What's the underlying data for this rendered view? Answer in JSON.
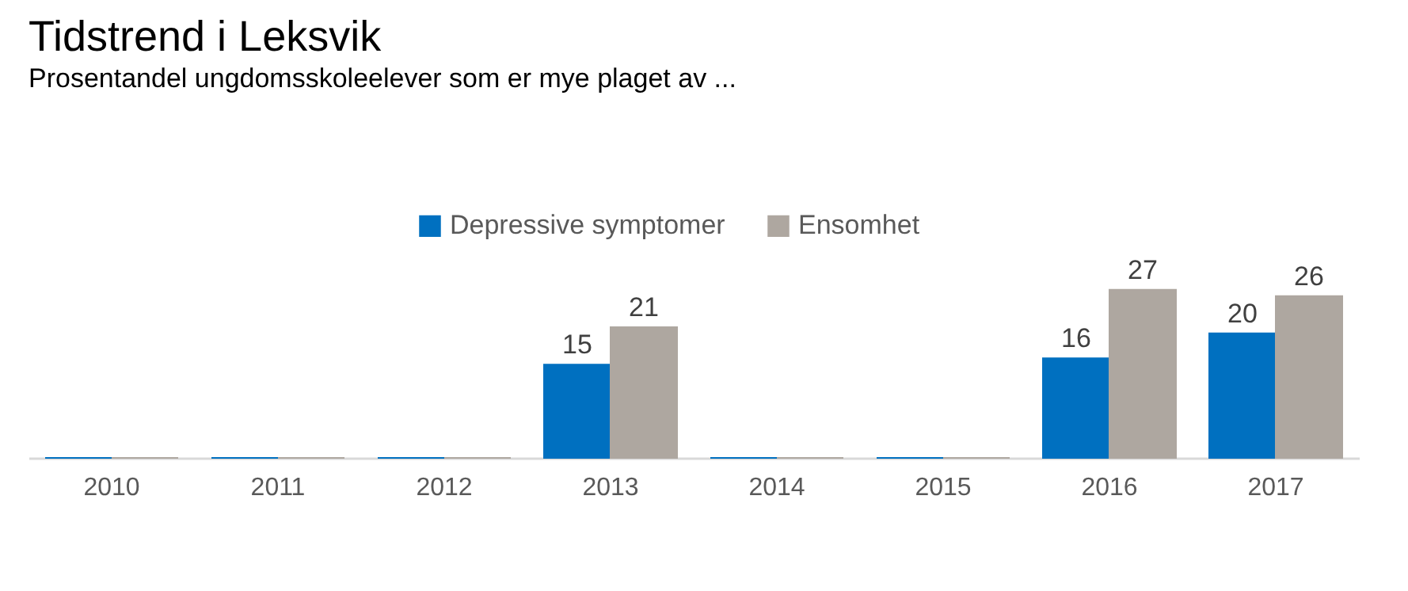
{
  "chart_data": {
    "type": "bar",
    "title": "Tidstrend i Leksvik",
    "subtitle": "Prosentandel ungdomsskoleelever som er mye plaget av ...",
    "categories": [
      "2010",
      "2011",
      "2012",
      "2013",
      "2014",
      "2015",
      "2016",
      "2017"
    ],
    "series": [
      {
        "name": "Depressive symptomer",
        "color": "#0070c0",
        "values": [
          0,
          0,
          0,
          15,
          0,
          0,
          16,
          20
        ],
        "value_labels": [
          null,
          null,
          null,
          "15",
          null,
          null,
          "16",
          "20"
        ]
      },
      {
        "name": "Ensomhet",
        "color": "#aea7a0",
        "values": [
          0,
          0,
          0,
          21,
          0,
          0,
          27,
          26
        ],
        "value_labels": [
          null,
          null,
          null,
          "21",
          null,
          null,
          "27",
          "26"
        ]
      }
    ],
    "tick_labels": "x",
    "grid": false,
    "legend": "top"
  }
}
